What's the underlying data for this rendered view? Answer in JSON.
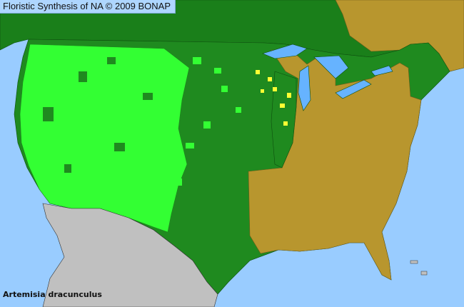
{
  "header": {
    "title": "Floristic Synthesis of NA © 2009 BONAP"
  },
  "map": {
    "species": "Artemisia dracunculus",
    "colors": {
      "ocean": "#99ccff",
      "present_native": "#1f8a1f",
      "present_county": "#33ff33",
      "absent": "#b8962e",
      "rare": "#ffff33",
      "outside_range": "#c0c0c0"
    }
  }
}
